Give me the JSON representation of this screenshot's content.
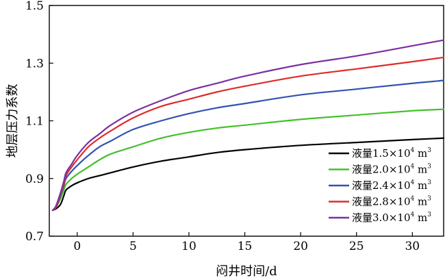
{
  "chart_data": {
    "type": "line",
    "title": "",
    "xlabel": "闷井时间/d",
    "ylabel": "地层压力系数",
    "xlim": [
      -2.5,
      32.8
    ],
    "ylim": [
      0.7,
      1.5
    ],
    "xticks": [
      0,
      5,
      10,
      15,
      20,
      25,
      30
    ],
    "yticks": [
      0.7,
      0.9,
      1.1,
      1.3,
      1.5
    ],
    "ytick_labels": [
      "0.7",
      "0.9",
      "1.1",
      "1.3",
      "1.5"
    ],
    "grid": false,
    "legend": "bottom-right",
    "x": [
      -2.2,
      -1.9,
      -1.5,
      -1.2,
      -1.0,
      -0.5,
      0,
      1,
      2,
      3,
      5,
      7.5,
      10,
      12.5,
      15,
      20,
      25,
      30,
      32.8
    ],
    "series": [
      {
        "name": "液量1.5×10⁴ m³",
        "legend_prefix": "液量1.5×10",
        "legend_exp": "4",
        "legend_unit": " m",
        "legend_unit_exp": "3",
        "color": "#000000",
        "values": [
          0.79,
          0.795,
          0.81,
          0.84,
          0.86,
          0.875,
          0.885,
          0.9,
          0.91,
          0.92,
          0.94,
          0.96,
          0.975,
          0.99,
          1.0,
          1.015,
          1.025,
          1.035,
          1.04
        ]
      },
      {
        "name": "液量2.0×10⁴ m³",
        "legend_prefix": "液量2.0×10",
        "legend_exp": "4",
        "legend_unit": " m",
        "legend_unit_exp": "3",
        "color": "#44c02b",
        "values": [
          0.79,
          0.8,
          0.83,
          0.86,
          0.88,
          0.9,
          0.915,
          0.94,
          0.965,
          0.985,
          1.01,
          1.04,
          1.06,
          1.075,
          1.085,
          1.105,
          1.12,
          1.135,
          1.14
        ]
      },
      {
        "name": "液量2.4×10⁴ m³",
        "legend_prefix": "液量2.4×10",
        "legend_exp": "4",
        "legend_unit": " m",
        "legend_unit_exp": "3",
        "color": "#2f52b3",
        "values": [
          0.79,
          0.8,
          0.84,
          0.875,
          0.9,
          0.925,
          0.945,
          0.98,
          1.01,
          1.03,
          1.07,
          1.1,
          1.125,
          1.145,
          1.16,
          1.19,
          1.21,
          1.23,
          1.24
        ]
      },
      {
        "name": "液量2.8×10⁴ m³",
        "legend_prefix": "液量2.8×10",
        "legend_exp": "4",
        "legend_unit": " m",
        "legend_unit_exp": "3",
        "color": "#e02a2a",
        "values": [
          0.79,
          0.8,
          0.845,
          0.88,
          0.91,
          0.94,
          0.965,
          1.01,
          1.04,
          1.065,
          1.11,
          1.15,
          1.175,
          1.2,
          1.22,
          1.255,
          1.28,
          1.305,
          1.32
        ]
      },
      {
        "name": "液量3.0×10⁴ m³",
        "legend_prefix": "液量3.0×10",
        "legend_exp": "4",
        "legend_unit": " m",
        "legend_unit_exp": "3",
        "color": "#7b2fa0",
        "values": [
          0.79,
          0.805,
          0.85,
          0.89,
          0.92,
          0.95,
          0.98,
          1.025,
          1.055,
          1.085,
          1.13,
          1.17,
          1.205,
          1.23,
          1.255,
          1.295,
          1.325,
          1.36,
          1.38
        ]
      }
    ]
  }
}
